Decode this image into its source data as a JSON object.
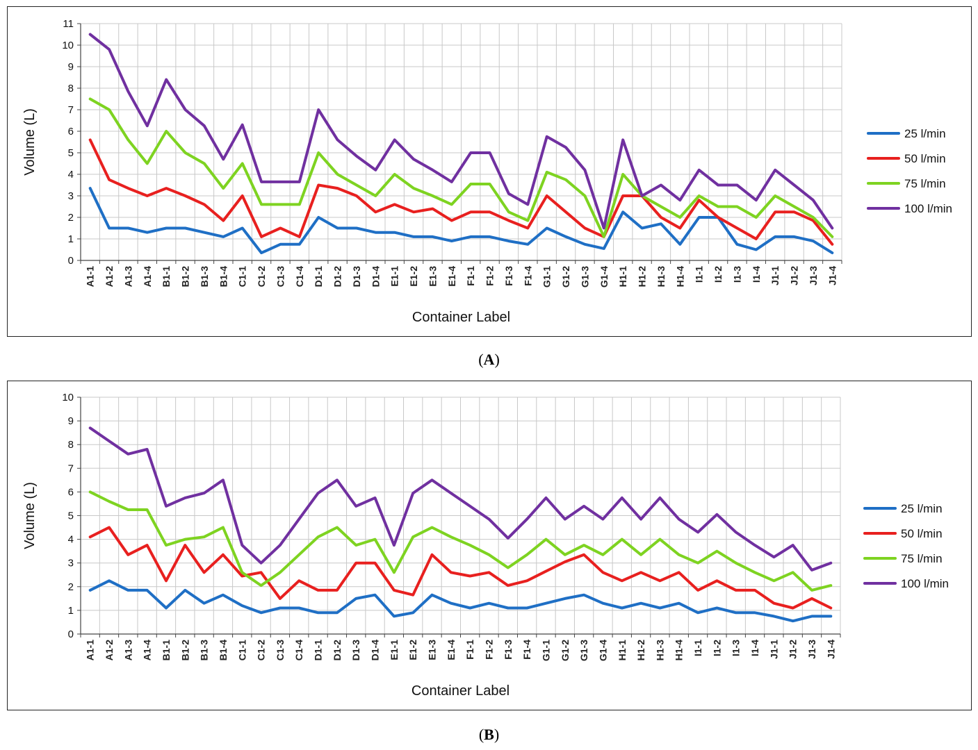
{
  "chart_data": [
    {
      "type": "line",
      "panel": "A",
      "xlabel": "Container Label",
      "ylabel": "Volume (L)",
      "ylim": [
        0,
        11
      ],
      "yticks": [
        0,
        1,
        2,
        3,
        4,
        5,
        6,
        7,
        8,
        9,
        10,
        11
      ],
      "grid": true,
      "legend": "right",
      "categories": [
        "A1-1",
        "A1-2",
        "A1-3",
        "A1-4",
        "B1-1",
        "B1-2",
        "B1-3",
        "B1-4",
        "C1-1",
        "C1-2",
        "C1-3",
        "C1-4",
        "D1-1",
        "D1-2",
        "D1-3",
        "D1-4",
        "E1-1",
        "E1-2",
        "E1-3",
        "E1-4",
        "F1-1",
        "F1-2",
        "F1-3",
        "F1-4",
        "G1-1",
        "G1-2",
        "G1-3",
        "G1-4",
        "H1-1",
        "H1-2",
        "H1-3",
        "H1-4",
        "I1-1",
        "I1-2",
        "I1-3",
        "I1-4",
        "J1-1",
        "J1-2",
        "J1-3",
        "J1-4"
      ],
      "series": [
        {
          "name": "25 l/min",
          "color": "#1F6FC5",
          "values": [
            3.35,
            1.5,
            1.5,
            1.3,
            1.5,
            1.5,
            1.3,
            1.1,
            1.5,
            0.35,
            0.75,
            0.75,
            2.0,
            1.5,
            1.5,
            1.3,
            1.3,
            1.1,
            1.1,
            0.9,
            1.1,
            1.1,
            0.9,
            0.75,
            1.5,
            1.1,
            0.75,
            0.55,
            2.25,
            1.5,
            1.7,
            0.75,
            2.0,
            2.0,
            0.75,
            0.5,
            1.1,
            1.1,
            0.9,
            0.35
          ]
        },
        {
          "name": "50 l/min",
          "color": "#E8201F",
          "values": [
            5.6,
            3.75,
            3.35,
            3.0,
            3.35,
            3.0,
            2.6,
            1.85,
            3.0,
            1.1,
            1.5,
            1.1,
            3.5,
            3.35,
            3.0,
            2.25,
            2.6,
            2.25,
            2.4,
            1.85,
            2.25,
            2.25,
            1.85,
            1.5,
            3.0,
            2.25,
            1.5,
            1.1,
            3.0,
            3.0,
            2.0,
            1.5,
            2.8,
            2.0,
            1.5,
            1.0,
            2.25,
            2.25,
            1.85,
            0.75
          ]
        },
        {
          "name": "75 l/min",
          "color": "#7ED321",
          "values": [
            7.5,
            7.0,
            5.6,
            4.5,
            6.0,
            5.0,
            4.5,
            3.35,
            4.5,
            2.6,
            2.6,
            2.6,
            5.0,
            4.0,
            3.5,
            3.0,
            4.0,
            3.35,
            3.0,
            2.6,
            3.55,
            3.55,
            2.25,
            1.85,
            4.1,
            3.75,
            3.0,
            1.1,
            4.0,
            3.0,
            2.5,
            2.0,
            3.0,
            2.5,
            2.5,
            2.0,
            3.0,
            2.5,
            2.0,
            1.1
          ]
        },
        {
          "name": "100 l/min",
          "color": "#7030A0",
          "values": [
            10.5,
            9.8,
            7.85,
            6.25,
            8.4,
            7.0,
            6.25,
            4.7,
            6.3,
            3.65,
            3.65,
            3.65,
            7.0,
            5.6,
            4.85,
            4.2,
            5.6,
            4.7,
            4.2,
            3.65,
            5.0,
            5.0,
            3.1,
            2.6,
            5.75,
            5.25,
            4.2,
            1.5,
            5.6,
            3.0,
            3.5,
            2.8,
            4.2,
            3.5,
            3.5,
            2.8,
            4.2,
            3.5,
            2.8,
            1.5
          ]
        }
      ]
    },
    {
      "type": "line",
      "panel": "B",
      "xlabel": "Container Label",
      "ylabel": "Volume (L)",
      "ylim": [
        0,
        10
      ],
      "yticks": [
        0,
        1,
        2,
        3,
        4,
        5,
        6,
        7,
        8,
        9,
        10
      ],
      "grid": true,
      "legend": "right",
      "categories": [
        "A1-1",
        "A1-2",
        "A1-3",
        "A1-4",
        "B1-1",
        "B1-2",
        "B1-3",
        "B1-4",
        "C1-1",
        "C1-2",
        "C1-3",
        "C1-4",
        "D1-1",
        "D1-2",
        "D1-3",
        "D1-4",
        "E1-1",
        "E1-2",
        "E1-3",
        "E1-4",
        "F1-1",
        "F1-2",
        "F1-3",
        "F1-4",
        "G1-1",
        "G1-2",
        "G1-3",
        "G1-4",
        "H1-1",
        "H1-2",
        "H1-3",
        "H1-4",
        "I1-1",
        "I1-2",
        "I1-3",
        "I1-4",
        "J1-1",
        "J1-2",
        "J1-3",
        "J1-4"
      ],
      "series": [
        {
          "name": "25 l/min",
          "color": "#1F6FC5",
          "values": [
            1.85,
            2.25,
            1.85,
            1.85,
            1.1,
            1.85,
            1.3,
            1.65,
            1.2,
            0.9,
            1.1,
            1.1,
            0.9,
            0.9,
            1.5,
            1.65,
            0.75,
            0.9,
            1.65,
            1.3,
            1.1,
            1.3,
            1.1,
            1.1,
            1.3,
            1.5,
            1.65,
            1.3,
            1.1,
            1.3,
            1.1,
            1.3,
            0.9,
            1.1,
            0.9,
            0.9,
            0.75,
            0.55,
            0.75,
            0.75
          ]
        },
        {
          "name": "50 l/min",
          "color": "#E8201F",
          "values": [
            4.1,
            4.5,
            3.35,
            3.75,
            2.25,
            3.75,
            2.6,
            3.35,
            2.45,
            2.6,
            1.5,
            2.25,
            1.85,
            1.85,
            3.0,
            3.0,
            1.85,
            1.65,
            3.35,
            2.6,
            2.45,
            2.6,
            2.05,
            2.25,
            2.65,
            3.05,
            3.35,
            2.6,
            2.25,
            2.6,
            2.25,
            2.6,
            1.85,
            2.25,
            1.85,
            1.85,
            1.3,
            1.1,
            1.5,
            1.1
          ]
        },
        {
          "name": "75 l/min",
          "color": "#7ED321",
          "values": [
            6.0,
            5.6,
            5.25,
            5.25,
            3.75,
            4.0,
            4.1,
            4.5,
            2.6,
            2.05,
            2.6,
            3.35,
            4.1,
            4.5,
            3.75,
            4.0,
            2.6,
            4.1,
            4.5,
            4.1,
            3.75,
            3.35,
            2.8,
            3.35,
            4.0,
            3.35,
            3.75,
            3.35,
            4.0,
            3.35,
            4.0,
            3.35,
            3.0,
            3.5,
            3.0,
            2.6,
            2.25,
            2.6,
            1.85,
            2.05
          ]
        },
        {
          "name": "100 l/min",
          "color": "#7030A0",
          "values": [
            8.7,
            8.15,
            7.6,
            7.8,
            5.4,
            5.75,
            5.95,
            6.5,
            3.75,
            3.0,
            3.75,
            4.85,
            5.95,
            6.5,
            5.4,
            5.75,
            3.75,
            5.95,
            6.5,
            5.95,
            5.4,
            4.85,
            4.05,
            4.85,
            5.75,
            4.85,
            5.4,
            4.85,
            5.75,
            4.85,
            5.75,
            4.85,
            4.3,
            5.05,
            4.3,
            3.75,
            3.25,
            3.75,
            2.7,
            3.0
          ]
        }
      ]
    }
  ],
  "captions": [
    {
      "open": "(",
      "letter": "A",
      "close": ")"
    },
    {
      "open": "(",
      "letter": "B",
      "close": ")"
    }
  ]
}
